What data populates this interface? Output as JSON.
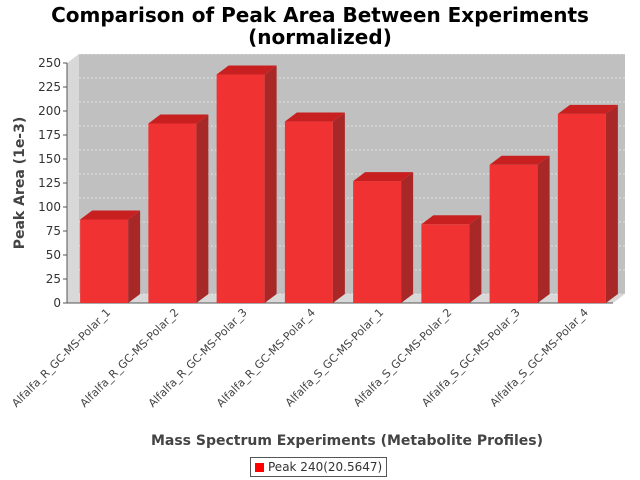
{
  "chart_data": {
    "type": "bar",
    "title_line1": "Comparison of Peak Area Between Experiments",
    "title_line2": "(normalized)",
    "xlabel": "Mass Spectrum Experiments (Metabolite Profiles)",
    "ylabel": "Peak Area (1e-3)",
    "ylim": [
      0,
      250
    ],
    "yticks": [
      "0",
      "25",
      "50",
      "75",
      "100",
      "125",
      "150",
      "175",
      "200",
      "225",
      "250"
    ],
    "categories": [
      "Alfalfa_R_GC-MS-Polar_1",
      "Alfalfa_R_GC-MS-Polar_2",
      "Alfalfa_R_GC-MS-Polar_3",
      "Alfalfa_R_GC-MS-Polar_4",
      "Alfalfa_S_GC-MS-Polar_1",
      "Alfalfa_S_GC-MS-Polar_2",
      "Alfalfa_S_GC-MS-Polar_3",
      "Alfalfa_S_GC-MS-Polar_4"
    ],
    "series": [
      {
        "name": "Peak 240(20.5647)",
        "values": [
          87,
          187,
          238,
          189,
          127,
          82,
          144,
          197
        ]
      }
    ],
    "colors": {
      "bar": "#f03232",
      "bar_top": "#c82020",
      "bar_side": "#a82828",
      "plot_bg": "#c0c0c0"
    },
    "grid": true,
    "legend_position": "bottom"
  }
}
